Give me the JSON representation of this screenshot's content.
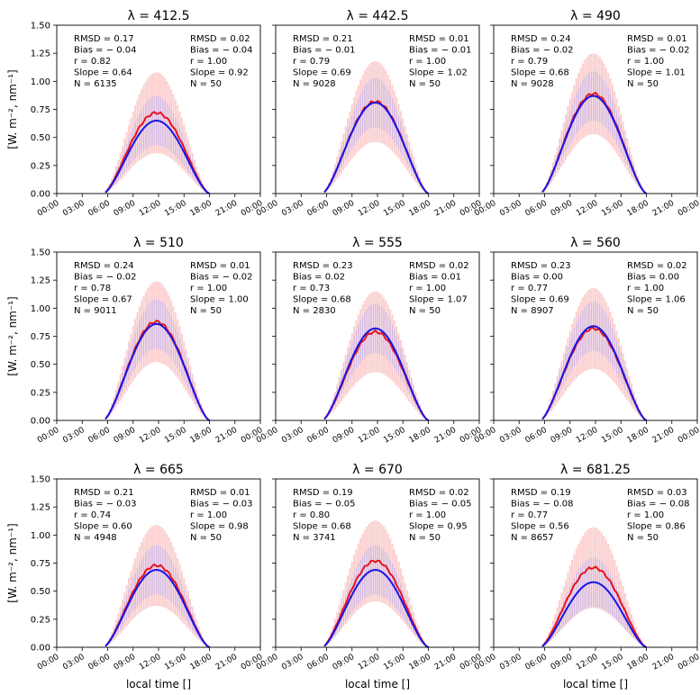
{
  "figure": {
    "ylabel": "[W. m⁻², nm⁻¹]",
    "xlabel": "local time []"
  },
  "colors": {
    "model": "#e8141c",
    "obs": "#1a14e6",
    "model_band": "#f7a8a8",
    "obs_band": "#b9aef0"
  },
  "chart_data": [
    {
      "type": "line",
      "title": "λ = 412.5",
      "xticks": [
        "00:00",
        "03:00",
        "06:00",
        "09:00",
        "12:00",
        "15:00",
        "18:00",
        "21:00",
        "00:00"
      ],
      "yticks": [
        "0.00",
        "0.25",
        "0.50",
        "0.75",
        "1.00",
        "1.25",
        "1.50"
      ],
      "ylim": [
        0,
        1.5
      ],
      "xlim": [
        0,
        24
      ],
      "peak_red": 0.72,
      "peak_blue": 0.65,
      "stats_left": [
        "RMSD = 0.17",
        "Bias = − 0.04",
        "r = 0.82",
        "Slope = 0.64",
        "N = 6135"
      ],
      "stats_right": [
        "RMSD = 0.02",
        "Bias = − 0.04",
        "r = 1.00",
        "Slope = 0.92",
        "N = 50"
      ]
    },
    {
      "type": "line",
      "title": "λ = 442.5",
      "xticks": [
        "00:00",
        "03:00",
        "06:00",
        "09:00",
        "12:00",
        "15:00",
        "18:00",
        "21:00",
        "00:00"
      ],
      "yticks": [
        "0.00",
        "0.25",
        "0.50",
        "0.75",
        "1.00",
        "1.25",
        "1.50"
      ],
      "ylim": [
        0,
        1.5
      ],
      "xlim": [
        0,
        24
      ],
      "peak_red": 0.82,
      "peak_blue": 0.81,
      "stats_left": [
        "RMSD = 0.21",
        "Bias = − 0.01",
        "r = 0.79",
        "Slope = 0.69",
        "N = 9028"
      ],
      "stats_right": [
        "RMSD = 0.01",
        "Bias = − 0.01",
        "r = 1.00",
        "Slope = 1.02",
        "N = 50"
      ]
    },
    {
      "type": "line",
      "title": "λ = 490",
      "xticks": [
        "00:00",
        "03:00",
        "06:00",
        "09:00",
        "12:00",
        "15:00",
        "18:00",
        "21:00",
        "00:00"
      ],
      "yticks": [
        "0.00",
        "0.25",
        "0.50",
        "0.75",
        "1.00",
        "1.25",
        "1.50"
      ],
      "ylim": [
        0,
        1.5
      ],
      "xlim": [
        0,
        24
      ],
      "peak_red": 0.89,
      "peak_blue": 0.87,
      "stats_left": [
        "RMSD = 0.24",
        "Bias = − 0.02",
        "r = 0.79",
        "Slope = 0.68",
        "N = 9028"
      ],
      "stats_right": [
        "RMSD = 0.01",
        "Bias = − 0.02",
        "r = 1.00",
        "Slope = 1.01",
        "N = 50"
      ]
    },
    {
      "type": "line",
      "title": "λ = 510",
      "xticks": [
        "00:00",
        "03:00",
        "06:00",
        "09:00",
        "12:00",
        "15:00",
        "18:00",
        "21:00",
        "00:00"
      ],
      "yticks": [
        "0.00",
        "0.25",
        "0.50",
        "0.75",
        "1.00",
        "1.25",
        "1.50"
      ],
      "ylim": [
        0,
        1.5
      ],
      "xlim": [
        0,
        24
      ],
      "peak_red": 0.88,
      "peak_blue": 0.86,
      "stats_left": [
        "RMSD = 0.24",
        "Bias = − 0.02",
        "r = 0.78",
        "Slope = 0.67",
        "N = 9011"
      ],
      "stats_right": [
        "RMSD = 0.01",
        "Bias = − 0.02",
        "r = 1.00",
        "Slope = 1.00",
        "N = 50"
      ]
    },
    {
      "type": "line",
      "title": "λ = 555",
      "xticks": [
        "00:00",
        "03:00",
        "06:00",
        "09:00",
        "12:00",
        "15:00",
        "18:00",
        "21:00",
        "00:00"
      ],
      "yticks": [
        "0.00",
        "0.25",
        "0.50",
        "0.75",
        "1.00",
        "1.25",
        "1.50"
      ],
      "ylim": [
        0,
        1.5
      ],
      "xlim": [
        0,
        24
      ],
      "peak_red": 0.79,
      "peak_blue": 0.82,
      "stats_left": [
        "RMSD = 0.23",
        "Bias = 0.02",
        "r = 0.73",
        "Slope = 0.68",
        "N = 2830"
      ],
      "stats_right": [
        "RMSD = 0.02",
        "Bias = 0.01",
        "r = 1.00",
        "Slope = 1.07",
        "N = 50"
      ]
    },
    {
      "type": "line",
      "title": "λ = 560",
      "xticks": [
        "00:00",
        "03:00",
        "06:00",
        "09:00",
        "12:00",
        "15:00",
        "18:00",
        "21:00",
        "00:00"
      ],
      "yticks": [
        "0.00",
        "0.25",
        "0.50",
        "0.75",
        "1.00",
        "1.25",
        "1.50"
      ],
      "ylim": [
        0,
        1.5
      ],
      "xlim": [
        0,
        24
      ],
      "peak_red": 0.82,
      "peak_blue": 0.84,
      "stats_left": [
        "RMSD = 0.23",
        "Bias = 0.00",
        "r = 0.77",
        "Slope = 0.69",
        "N = 8907"
      ],
      "stats_right": [
        "RMSD = 0.02",
        "Bias = 0.00",
        "r = 1.00",
        "Slope = 1.06",
        "N = 50"
      ]
    },
    {
      "type": "line",
      "title": "λ = 665",
      "xticks": [
        "00:00",
        "03:00",
        "06:00",
        "09:00",
        "12:00",
        "15:00",
        "18:00",
        "21:00",
        "00:00"
      ],
      "yticks": [
        "0.00",
        "0.25",
        "0.50",
        "0.75",
        "1.00",
        "1.25",
        "1.50"
      ],
      "ylim": [
        0,
        1.5
      ],
      "xlim": [
        0,
        24
      ],
      "peak_red": 0.73,
      "peak_blue": 0.69,
      "stats_left": [
        "RMSD = 0.21",
        "Bias = − 0.03",
        "r = 0.74",
        "Slope = 0.60",
        "N = 4948"
      ],
      "stats_right": [
        "RMSD = 0.01",
        "Bias = − 0.03",
        "r = 1.00",
        "Slope = 0.98",
        "N = 50"
      ]
    },
    {
      "type": "line",
      "title": "λ = 670",
      "xticks": [
        "00:00",
        "03:00",
        "06:00",
        "09:00",
        "12:00",
        "15:00",
        "18:00",
        "21:00",
        "00:00"
      ],
      "yticks": [
        "0.00",
        "0.25",
        "0.50",
        "0.75",
        "1.00",
        "1.25",
        "1.50"
      ],
      "ylim": [
        0,
        1.5
      ],
      "xlim": [
        0,
        24
      ],
      "peak_red": 0.77,
      "peak_blue": 0.69,
      "stats_left": [
        "RMSD = 0.19",
        "Bias = − 0.05",
        "r = 0.80",
        "Slope = 0.68",
        "N = 3741"
      ],
      "stats_right": [
        "RMSD = 0.02",
        "Bias = − 0.05",
        "r = 1.00",
        "Slope = 0.95",
        "N = 50"
      ]
    },
    {
      "type": "line",
      "title": "λ = 681.25",
      "xticks": [
        "00:00",
        "03:00",
        "06:00",
        "09:00",
        "12:00",
        "15:00",
        "18:00",
        "21:00",
        "00:00"
      ],
      "yticks": [
        "0.00",
        "0.25",
        "0.50",
        "0.75",
        "1.00",
        "1.25",
        "1.50"
      ],
      "ylim": [
        0,
        1.5
      ],
      "xlim": [
        0,
        24
      ],
      "peak_red": 0.71,
      "peak_blue": 0.58,
      "stats_left": [
        "RMSD = 0.19",
        "Bias = − 0.08",
        "r = 0.77",
        "Slope = 0.56",
        "N = 8657"
      ],
      "stats_right": [
        "RMSD = 0.03",
        "Bias = − 0.08",
        "r = 1.00",
        "Slope = 0.86",
        "N = 50"
      ]
    }
  ]
}
